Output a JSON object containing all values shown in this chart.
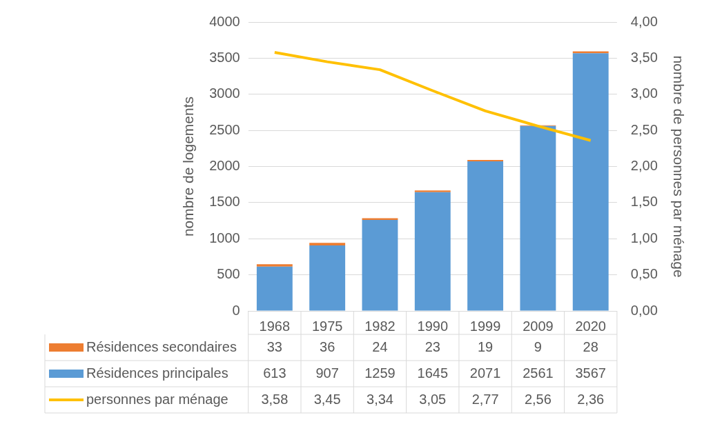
{
  "chart_data": {
    "type": "bar",
    "stacked": true,
    "categories": [
      "1968",
      "1975",
      "1982",
      "1990",
      "1999",
      "2009",
      "2020"
    ],
    "ylabel": "nombre de logements",
    "y2label": "nombre de personnes par ménage",
    "series": [
      {
        "name": "Résidences principales",
        "color": "#5b9bd5",
        "values": [
          613,
          907,
          1259,
          1645,
          2071,
          2561,
          3567
        ],
        "value_labels": [
          "613",
          "907",
          "1259",
          "1645",
          "2071",
          "2561",
          "3567"
        ]
      },
      {
        "name": "Résidences secondaires",
        "color": "#ed7d31",
        "values": [
          33,
          36,
          24,
          23,
          19,
          9,
          28
        ],
        "value_labels": [
          "33",
          "36",
          "24",
          "23",
          "19",
          "9",
          "28"
        ]
      },
      {
        "name": "personnes par ménage",
        "type": "line",
        "axis": "y2",
        "color": "#ffc000",
        "marker": "none",
        "values": [
          3.58,
          3.45,
          3.34,
          3.05,
          2.77,
          2.56,
          2.36
        ],
        "value_labels": [
          "3,58",
          "3,45",
          "3,34",
          "3,05",
          "2,77",
          "2,56",
          "2,36"
        ]
      }
    ],
    "ylim": [
      0,
      4000
    ],
    "yticks": [
      0,
      500,
      1000,
      1500,
      2000,
      2500,
      3000,
      3500,
      4000
    ],
    "y2lim": [
      0,
      4
    ],
    "y2ticks": [
      {
        "value": 0,
        "label": "0,00"
      },
      {
        "value": 0.5,
        "label": "0,50"
      },
      {
        "value": 1,
        "label": "1,00"
      },
      {
        "value": 1.5,
        "label": "1,50"
      },
      {
        "value": 2,
        "label": "2,00"
      },
      {
        "value": 2.5,
        "label": "2,50"
      },
      {
        "value": 3,
        "label": "3,00"
      },
      {
        "value": 3.5,
        "label": "3,50"
      },
      {
        "value": 4,
        "label": "4,00"
      }
    ],
    "grid": "y",
    "legend": "bottom"
  }
}
